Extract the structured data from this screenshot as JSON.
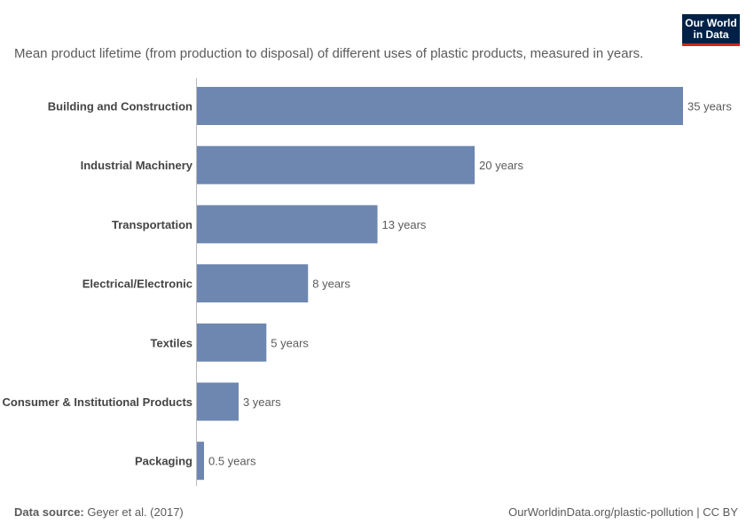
{
  "logo": {
    "line1": "Our World",
    "line2": "in Data"
  },
  "subtitle": "Mean product lifetime (from production to disposal) of different uses of plastic products, measured in years.",
  "footer": {
    "source_label": "Data source:",
    "source_value": "Geyer et al. (2017)",
    "right": "OurWorldinData.org/plastic-pollution | CC BY"
  },
  "colors": {
    "bar": "#6d87b0",
    "axis": "#bbbbbb",
    "label": "#444444",
    "value": "#5b5b5b"
  },
  "chart_data": {
    "type": "bar",
    "orientation": "horizontal",
    "categories": [
      "Building and Construction",
      "Industrial Machinery",
      "Transportation",
      "Electrical/Electronic",
      "Textiles",
      "Consumer & Institutional Products",
      "Packaging"
    ],
    "values": [
      35,
      20,
      13,
      8,
      5,
      3,
      0.5
    ],
    "value_labels": [
      "35 years",
      "20 years",
      "13 years",
      "8 years",
      "5 years",
      "3 years",
      "0.5 years"
    ],
    "xlim": [
      0,
      35
    ],
    "grid": false
  }
}
